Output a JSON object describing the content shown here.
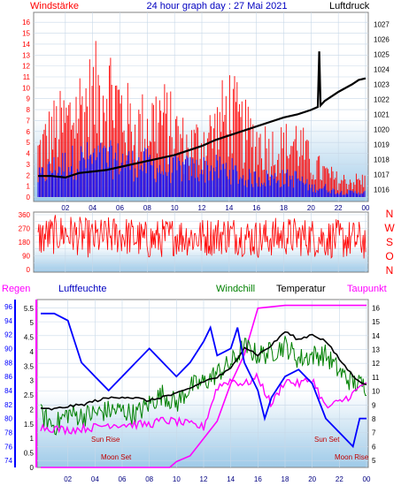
{
  "header": {
    "left_label": "Windstärke",
    "title": "24 hour graph day : 27 Mai 2021",
    "right_label": "Luftdruck"
  },
  "legend": {
    "regen": "Regen",
    "luftfeuchte": "Luftfeuchte",
    "windchill": "Windchill",
    "temperatur": "Temperatur",
    "taupunkt": "Taupunkt"
  },
  "direction_labels": [
    "N",
    "W",
    "S",
    "O",
    "N"
  ],
  "astro_labels": {
    "sun_rise": "Sun Rise",
    "moon_set": "Moon Set",
    "sun_set": "Sun Set",
    "moon_rise": "Moon Rise"
  },
  "colors": {
    "wind_gust": "#ff0000",
    "wind_avg": "#0000ff",
    "pressure": "#000000",
    "direction": "#ff0000",
    "rain": "#ff00ff",
    "humidity": "#0000ff",
    "windchill": "#008000",
    "temperature": "#000000",
    "dewpoint": "#ff00ff",
    "axis_left": "#ff0000",
    "axis_right": "#000000",
    "humidity_axis": "#0000ff",
    "rain_axis": "#ff00ff",
    "title": "#0000c0",
    "bg_top": "#ffffff",
    "bg_bottom": "#9ecae8"
  },
  "chart_data": [
    {
      "type": "line",
      "title": "24 hour graph day : 27 Mai 2021",
      "x": [
        "02",
        "04",
        "06",
        "08",
        "10",
        "12",
        "14",
        "16",
        "18",
        "20",
        "22",
        "00"
      ],
      "left_axis": {
        "label": "Windstärke",
        "ticks": [
          0,
          1,
          2,
          3,
          4,
          5,
          6,
          7,
          8,
          9,
          10,
          11,
          12,
          13,
          14,
          15,
          16
        ],
        "ylim": [
          0,
          16.5
        ]
      },
      "right_axis": {
        "label": "Luftdruck",
        "ticks": [
          1016,
          1017,
          1018,
          1019,
          1020,
          1021,
          1022,
          1023,
          1024,
          1025,
          1026,
          1027
        ],
        "ylim": [
          1015.5,
          1027.5
        ]
      },
      "series": [
        {
          "name": "Luftdruck",
          "axis": "right",
          "points": [
            [
              0,
              1016.9
            ],
            [
              1,
              1016.9
            ],
            [
              2,
              1016.8
            ],
            [
              3,
              1017.1
            ],
            [
              4,
              1017.2
            ],
            [
              5,
              1017.3
            ],
            [
              6,
              1017.5
            ],
            [
              7,
              1017.7
            ],
            [
              8,
              1017.9
            ],
            [
              9,
              1018.1
            ],
            [
              10,
              1018.3
            ],
            [
              11,
              1018.6
            ],
            [
              12,
              1018.9
            ],
            [
              13,
              1019.3
            ],
            [
              14,
              1019.6
            ],
            [
              15,
              1019.9
            ],
            [
              16,
              1020.2
            ],
            [
              17,
              1020.5
            ],
            [
              18,
              1020.8
            ],
            [
              19,
              1021.0
            ],
            [
              20,
              1021.3
            ],
            [
              20.5,
              1021.5
            ],
            [
              20.6,
              1025.2
            ],
            [
              20.7,
              1021.6
            ],
            [
              21,
              1021.9
            ],
            [
              22,
              1022.5
            ],
            [
              23,
              1023.0
            ],
            [
              23.5,
              1023.3
            ],
            [
              24,
              1023.4
            ]
          ]
        },
        {
          "name": "Windstärke",
          "axis": "left",
          "points": [
            [
              0,
              5.5
            ],
            [
              1,
              8
            ],
            [
              2,
              9
            ],
            [
              3,
              11
            ],
            [
              4,
              12
            ],
            [
              5,
              14
            ],
            [
              6,
              11
            ],
            [
              7,
              8
            ],
            [
              8,
              9
            ],
            [
              9,
              10
            ],
            [
              10,
              8
            ],
            [
              11,
              6
            ],
            [
              12,
              7
            ],
            [
              13,
              8
            ],
            [
              14,
              11
            ],
            [
              15,
              8
            ],
            [
              16,
              7
            ],
            [
              17,
              6
            ],
            [
              18,
              6
            ],
            [
              19,
              7
            ],
            [
              20,
              4
            ],
            [
              21,
              3
            ],
            [
              22,
              2
            ],
            [
              23,
              2
            ],
            [
              24,
              2
            ]
          ]
        },
        {
          "name": "Windstärke (avg)",
          "axis": "left",
          "points": [
            [
              0,
              2
            ],
            [
              1,
              3
            ],
            [
              2,
              3.5
            ],
            [
              3,
              4
            ],
            [
              4,
              4
            ],
            [
              5,
              4
            ],
            [
              6,
              4
            ],
            [
              7,
              3.5
            ],
            [
              8,
              3.5
            ],
            [
              9,
              3
            ],
            [
              10,
              3
            ],
            [
              11,
              3
            ],
            [
              12,
              3
            ],
            [
              13,
              3
            ],
            [
              14,
              3
            ],
            [
              15,
              2
            ],
            [
              16,
              2
            ],
            [
              17,
              2
            ],
            [
              18,
              2
            ],
            [
              19,
              2
            ],
            [
              20,
              1
            ],
            [
              21,
              1
            ],
            [
              22,
              0.5
            ],
            [
              23,
              0.5
            ],
            [
              24,
              0.5
            ]
          ]
        }
      ]
    },
    {
      "type": "line",
      "left_axis": {
        "ticks": [
          0,
          45,
          90,
          135,
          180,
          225,
          270,
          315,
          360
        ],
        "ylim": [
          0,
          360
        ]
      },
      "right_labels": [
        "N",
        "W",
        "S",
        "O",
        "N"
      ],
      "x": [
        "02",
        "04",
        "06",
        "08",
        "10",
        "12",
        "14",
        "16",
        "18",
        "20",
        "22",
        "00"
      ],
      "series": [
        {
          "name": "Windrichtung",
          "points": [
            [
              0,
              210
            ],
            [
              2,
              240
            ],
            [
              4,
              200
            ],
            [
              6,
              230
            ],
            [
              8,
              190
            ],
            [
              10,
              220
            ],
            [
              12,
              210
            ],
            [
              14,
              230
            ],
            [
              16,
              200
            ],
            [
              18,
              220
            ],
            [
              20,
              210
            ],
            [
              22,
              200
            ],
            [
              24,
              190
            ]
          ]
        }
      ]
    },
    {
      "type": "line",
      "x": [
        "02",
        "04",
        "06",
        "08",
        "10",
        "12",
        "14",
        "16",
        "18",
        "20",
        "22",
        "00"
      ],
      "axes": {
        "humidity": {
          "ticks": [
            74,
            76,
            78,
            80,
            82,
            84,
            86,
            88,
            90,
            92,
            94,
            96
          ],
          "ylim": [
            73,
            97
          ]
        },
        "rain": {
          "ticks": [
            0,
            0.5,
            1,
            1.5,
            2,
            2.5,
            3,
            3.5,
            4,
            4.5,
            5,
            5.5
          ],
          "ylim": [
            0,
            5.8
          ]
        },
        "temperature": {
          "ticks": [
            5,
            6,
            7,
            8,
            9,
            10,
            11,
            12,
            13,
            14,
            15,
            16
          ],
          "ylim": [
            4.5,
            16.6
          ]
        }
      },
      "series": [
        {
          "name": "Luftfeuchte",
          "axis": "humidity",
          "points": [
            [
              0,
              95
            ],
            [
              1,
              95
            ],
            [
              2,
              94
            ],
            [
              2.5,
              91
            ],
            [
              3,
              88
            ],
            [
              4,
              86
            ],
            [
              5,
              84
            ],
            [
              6,
              86
            ],
            [
              7,
              88
            ],
            [
              8,
              90
            ],
            [
              9,
              88
            ],
            [
              10,
              86
            ],
            [
              11,
              88
            ],
            [
              12,
              91
            ],
            [
              12.5,
              93
            ],
            [
              13,
              89
            ],
            [
              14,
              90
            ],
            [
              14.5,
              93
            ],
            [
              15,
              88
            ],
            [
              16,
              84
            ],
            [
              16.5,
              80
            ],
            [
              17,
              83
            ],
            [
              18,
              86
            ],
            [
              19,
              87
            ],
            [
              20,
              85
            ],
            [
              21,
              80
            ],
            [
              22,
              78
            ],
            [
              23,
              76
            ],
            [
              23.5,
              80
            ],
            [
              24,
              80
            ]
          ]
        },
        {
          "name": "Taupunkt",
          "axis": "temperature",
          "points": [
            [
              0,
              7.4
            ],
            [
              1,
              7.3
            ],
            [
              2,
              7.2
            ],
            [
              3,
              7.3
            ],
            [
              4,
              7.4
            ],
            [
              5,
              7.6
            ],
            [
              6,
              7.6
            ],
            [
              7,
              7.6
            ],
            [
              8,
              7.6
            ],
            [
              9,
              7.9
            ],
            [
              10,
              7.8
            ],
            [
              11,
              7.6
            ],
            [
              12,
              7.4
            ],
            [
              13,
              10.3
            ],
            [
              14,
              10.8
            ],
            [
              15,
              10.5
            ],
            [
              16,
              11.0
            ],
            [
              17,
              9.0
            ],
            [
              18,
              10.8
            ],
            [
              19,
              10.5
            ],
            [
              20,
              10.9
            ],
            [
              21,
              8.8
            ],
            [
              22,
              9.2
            ],
            [
              23,
              9.8
            ],
            [
              24,
              10.7
            ]
          ]
        },
        {
          "name": "Windchill",
          "axis": "temperature",
          "points": [
            [
              0,
              8.3
            ],
            [
              1,
              7.5
            ],
            [
              2,
              8.4
            ],
            [
              3,
              8.2
            ],
            [
              4,
              8.4
            ],
            [
              5,
              8.6
            ],
            [
              6,
              8.6
            ],
            [
              7,
              8.3
            ],
            [
              8,
              9.1
            ],
            [
              9,
              9.8
            ],
            [
              10,
              9.1
            ],
            [
              11,
              10.3
            ],
            [
              12,
              10.6
            ],
            [
              13,
              11.3
            ],
            [
              14,
              12.0
            ],
            [
              15,
              13.2
            ],
            [
              16,
              12.6
            ],
            [
              17,
              12.8
            ],
            [
              18,
              13.3
            ],
            [
              19,
              12.3
            ],
            [
              20,
              12.6
            ],
            [
              21,
              12.6
            ],
            [
              22,
              11.4
            ],
            [
              23,
              10.6
            ],
            [
              24,
              10.4
            ]
          ]
        },
        {
          "name": "Temperatur",
          "axis": "temperature",
          "points": [
            [
              0,
              8.7
            ],
            [
              1,
              8.7
            ],
            [
              2,
              8.9
            ],
            [
              3,
              9.0
            ],
            [
              4,
              9.3
            ],
            [
              5,
              9.5
            ],
            [
              6,
              9.6
            ],
            [
              7,
              9.5
            ],
            [
              8,
              9.3
            ],
            [
              9,
              9.6
            ],
            [
              10,
              9.8
            ],
            [
              11,
              10.2
            ],
            [
              12,
              10.7
            ],
            [
              13,
              11.0
            ],
            [
              14,
              11.6
            ],
            [
              15,
              13.2
            ],
            [
              16,
              12.6
            ],
            [
              17,
              13.3
            ],
            [
              18,
              14.3
            ],
            [
              19,
              13.7
            ],
            [
              20,
              14.1
            ],
            [
              21,
              13.6
            ],
            [
              22,
              12.3
            ],
            [
              23,
              11.1
            ],
            [
              24,
              10.4
            ]
          ]
        },
        {
          "name": "Regen",
          "axis": "rain",
          "points": [
            [
              0,
              0
            ],
            [
              9.5,
              0
            ],
            [
              10,
              0.2
            ],
            [
              11,
              0.4
            ],
            [
              12,
              1.0
            ],
            [
              13,
              1.6
            ],
            [
              14,
              2.9
            ],
            [
              15,
              3.9
            ],
            [
              16,
              5.5
            ],
            [
              18,
              5.6
            ],
            [
              20,
              5.6
            ],
            [
              22,
              5.6
            ],
            [
              24,
              5.6
            ]
          ]
        }
      ]
    }
  ]
}
